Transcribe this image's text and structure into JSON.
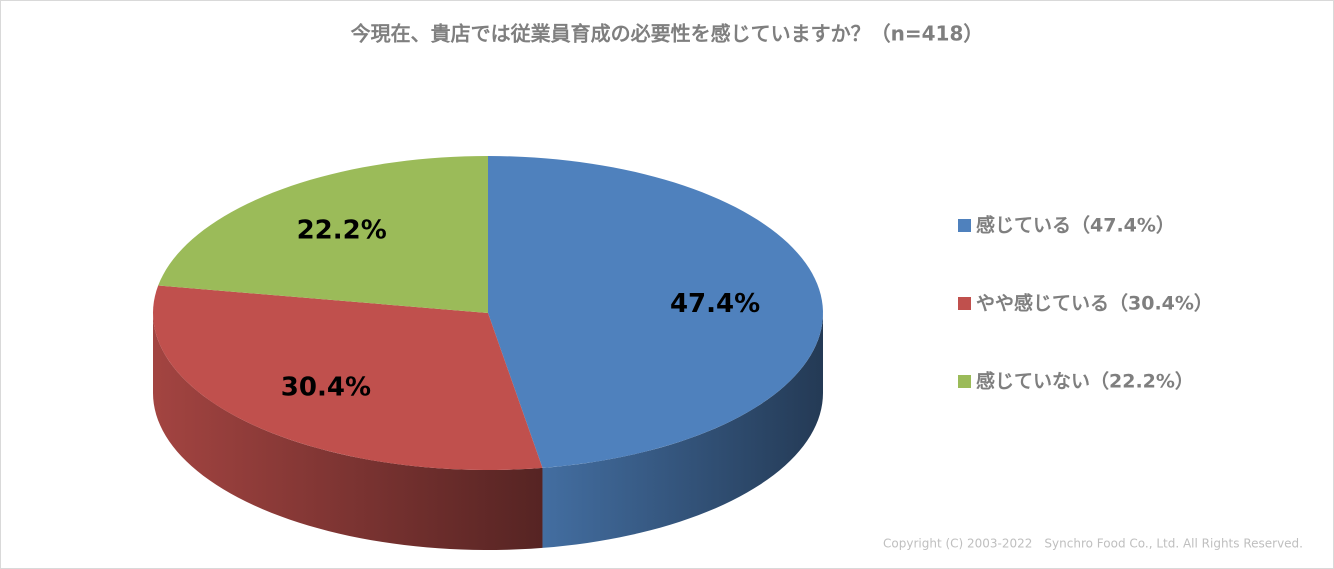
{
  "chart_data": {
    "type": "pie3d",
    "title": "今現在、貴店では従業員育成の必要性を感じていますか？（n=418）",
    "categories": [
      "感じている（47.4%）",
      "やや感じている（30.4%）",
      "感じていない（22.2%）"
    ],
    "values": [
      47.4,
      30.4,
      22.2
    ],
    "value_labels": [
      "47.4%",
      "30.4%",
      "22.2%"
    ],
    "colors": [
      "#4f81bd",
      "#c0504d",
      "#9bbb59"
    ],
    "legend": "right",
    "copyright": "Copyright (C) 2003-2022　Synchro Food Co., Ltd. All Rights Reserved."
  }
}
